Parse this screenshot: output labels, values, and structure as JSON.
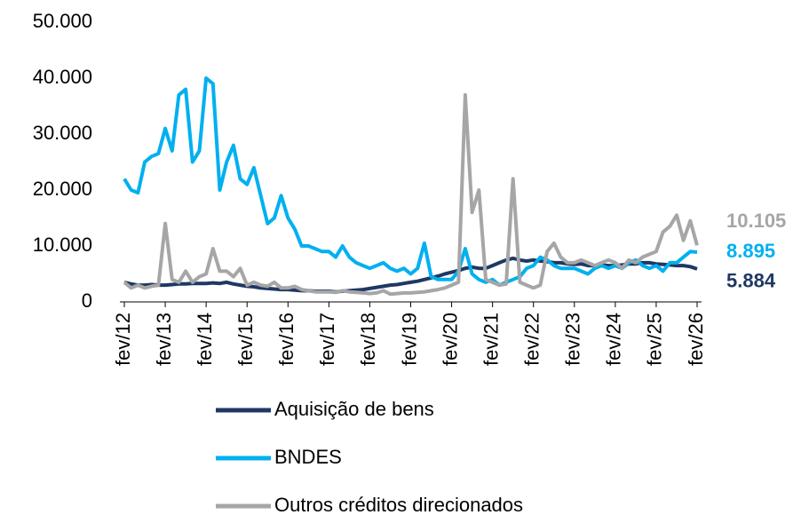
{
  "chart_data": {
    "type": "line",
    "categories": [
      "fev/12",
      null,
      null,
      null,
      null,
      null,
      "fev/13",
      null,
      null,
      null,
      null,
      null,
      "fev/14",
      null,
      null,
      null,
      null,
      null,
      "fev/15",
      null,
      null,
      null,
      null,
      null,
      "fev/16",
      null,
      null,
      null,
      null,
      null,
      "fev/17",
      null,
      null,
      null,
      null,
      null,
      "fev/18",
      null,
      null,
      null,
      null,
      null,
      "fev/19",
      null,
      null,
      null,
      null,
      null,
      "fev/20",
      null,
      null,
      null,
      null,
      null,
      "fev/21",
      null,
      null,
      null,
      null,
      null,
      "fev/22",
      null,
      null,
      null,
      null,
      null,
      "fev/23",
      null,
      null,
      null,
      null,
      null,
      "fev/24",
      null,
      null,
      null,
      null,
      null,
      "fev/25",
      null,
      null,
      null,
      null,
      null,
      "fev/26"
    ],
    "series": [
      {
        "name": "Aquisição de bens",
        "color": "#1f3864",
        "values": [
          3500,
          3200,
          3000,
          3000,
          3100,
          3000,
          3000,
          3100,
          3200,
          3200,
          3300,
          3300,
          3300,
          3400,
          3300,
          3500,
          3200,
          3000,
          2800,
          2700,
          2500,
          2400,
          2300,
          2200,
          2200,
          2100,
          2000,
          2000,
          1900,
          1900,
          1900,
          1800,
          1900,
          2000,
          2100,
          2200,
          2400,
          2600,
          2800,
          3000,
          3100,
          3300,
          3500,
          3700,
          4000,
          4300,
          4600,
          5000,
          5300,
          5600,
          6000,
          6200,
          6000,
          6000,
          6500,
          7000,
          7500,
          7800,
          7500,
          7300,
          7500,
          7300,
          7200,
          7000,
          7000,
          6800,
          6700,
          6800,
          6500,
          6500,
          6600,
          6500,
          6500,
          6600,
          6800,
          6800,
          7000,
          7000,
          6800,
          6700,
          6600,
          6500,
          6500,
          6300,
          5884
        ],
        "value_labels": [
          null,
          null,
          null,
          null,
          null,
          null,
          null,
          null,
          null,
          null,
          null,
          null,
          null,
          null,
          null,
          null,
          null,
          null,
          null,
          null,
          null,
          null,
          null,
          null,
          null,
          null,
          null,
          null,
          null,
          null,
          null,
          null,
          null,
          null,
          null,
          null,
          null,
          null,
          null,
          null,
          null,
          null,
          null,
          null,
          null,
          null,
          null,
          null,
          null,
          null,
          null,
          null,
          null,
          null,
          null,
          null,
          null,
          null,
          null,
          null,
          null,
          null,
          null,
          null,
          null,
          null,
          null,
          null,
          null,
          null,
          null,
          null,
          null,
          null,
          null,
          null,
          null,
          null,
          null,
          null,
          null,
          null,
          null,
          null,
          "5.884"
        ]
      },
      {
        "name": "BNDES",
        "color": "#00b0f0",
        "values": [
          22000,
          20000,
          19500,
          25000,
          26000,
          26500,
          31000,
          27000,
          37000,
          38000,
          25000,
          27000,
          40000,
          39000,
          20000,
          25000,
          28000,
          22000,
          21000,
          24000,
          19000,
          14000,
          15000,
          19000,
          15000,
          13000,
          10000,
          10000,
          9500,
          9000,
          9000,
          8000,
          10000,
          8000,
          7000,
          6500,
          6000,
          6500,
          7000,
          6000,
          5500,
          6000,
          5000,
          6000,
          10500,
          4500,
          4000,
          4000,
          4000,
          5500,
          9500,
          5000,
          4000,
          3500,
          4000,
          3000,
          3500,
          4000,
          4500,
          6000,
          6500,
          8000,
          7500,
          6500,
          6000,
          6000,
          6000,
          5500,
          5000,
          6000,
          6500,
          6000,
          6500,
          6000,
          7000,
          7500,
          6500,
          6000,
          6500,
          5500,
          7000,
          7000,
          8000,
          9000,
          8895
        ],
        "value_labels": [
          null,
          null,
          null,
          null,
          null,
          null,
          null,
          null,
          null,
          null,
          null,
          null,
          null,
          null,
          null,
          null,
          null,
          null,
          null,
          null,
          null,
          null,
          null,
          null,
          null,
          null,
          null,
          null,
          null,
          null,
          null,
          null,
          null,
          null,
          null,
          null,
          null,
          null,
          null,
          null,
          null,
          null,
          null,
          null,
          null,
          null,
          null,
          null,
          null,
          null,
          null,
          null,
          null,
          null,
          null,
          null,
          null,
          null,
          null,
          null,
          null,
          null,
          null,
          null,
          null,
          null,
          null,
          null,
          null,
          null,
          null,
          null,
          null,
          null,
          null,
          null,
          null,
          null,
          null,
          null,
          null,
          null,
          null,
          null,
          "8.895"
        ]
      },
      {
        "name": "Outros créditos direcionados",
        "color": "#a6a6a6",
        "values": [
          3500,
          2500,
          3000,
          2500,
          2800,
          3000,
          14000,
          4000,
          3500,
          5500,
          3500,
          4500,
          5000,
          9500,
          5500,
          5500,
          4500,
          6000,
          3000,
          3500,
          3000,
          2800,
          3500,
          2500,
          2500,
          2800,
          2200,
          2000,
          1800,
          1800,
          1800,
          1700,
          2000,
          1800,
          1700,
          1600,
          1500,
          1600,
          2000,
          1400,
          1500,
          1600,
          1600,
          1700,
          1800,
          2000,
          2200,
          2500,
          3000,
          3500,
          37000,
          16000,
          20000,
          4000,
          3500,
          3000,
          3200,
          22000,
          3500,
          3000,
          2500,
          3000,
          9000,
          10500,
          8000,
          7000,
          7000,
          7500,
          7000,
          6500,
          7000,
          7500,
          7000,
          6000,
          7500,
          7000,
          8000,
          8500,
          9000,
          12500,
          13500,
          15500,
          11000,
          14500,
          10105
        ],
        "value_labels": [
          null,
          null,
          null,
          null,
          null,
          null,
          null,
          null,
          null,
          null,
          null,
          null,
          null,
          null,
          null,
          null,
          null,
          null,
          null,
          null,
          null,
          null,
          null,
          null,
          null,
          null,
          null,
          null,
          null,
          null,
          null,
          null,
          null,
          null,
          null,
          null,
          null,
          null,
          null,
          null,
          null,
          null,
          null,
          null,
          null,
          null,
          null,
          null,
          null,
          null,
          null,
          null,
          null,
          null,
          null,
          null,
          null,
          null,
          null,
          null,
          null,
          null,
          null,
          null,
          null,
          null,
          null,
          null,
          null,
          null,
          null,
          null,
          null,
          null,
          null,
          null,
          null,
          null,
          null,
          null,
          null,
          null,
          null,
          null,
          "10.105"
        ]
      }
    ],
    "ylim": [
      0,
      50000
    ],
    "yticks": [
      0,
      {
        "value": 10000,
        "label": "10.000"
      },
      {
        "value": 20000,
        "label": "20.000"
      },
      {
        "value": 30000,
        "label": "30.000"
      },
      {
        "value": 40000,
        "label": "40.000"
      },
      {
        "value": 50000,
        "label": "50.000"
      }
    ],
    "grid": false,
    "legend": "bottom"
  }
}
